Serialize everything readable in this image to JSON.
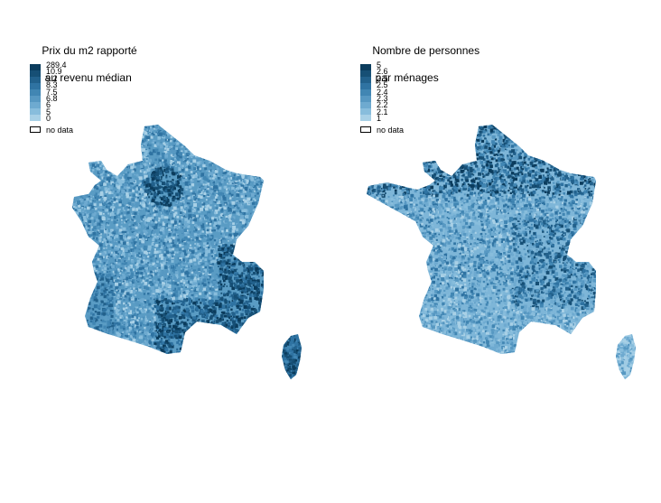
{
  "maps": [
    {
      "id": "left",
      "title_line1": "Prix du m2 rapporté",
      "title_line2": " au revenu médian",
      "legend_ticks": [
        "289.4",
        "10.9",
        "9.2",
        "8.3",
        "7.5",
        "6.8",
        "6",
        "5",
        "0"
      ],
      "swatch_colors": [
        "#0b3c5d",
        "#164f75",
        "#22618c",
        "#2f73a2",
        "#4186b3",
        "#5798c2",
        "#6eaad0",
        "#88bddc",
        "#a8d0e6"
      ],
      "no_data_label": "no data",
      "dominant_fill": "#5a9cc4"
    },
    {
      "id": "right",
      "title_line1": "Nombre de personnes",
      "title_line2": " par ménages",
      "legend_ticks": [
        "5",
        "2.6",
        "2.5",
        "2.5",
        "2.4",
        "2.3",
        "2.2",
        "2.1",
        "1"
      ],
      "swatch_colors": [
        "#0b3c5d",
        "#164f75",
        "#22618c",
        "#2f73a2",
        "#4186b3",
        "#5798c2",
        "#6eaad0",
        "#88bddc",
        "#a8d0e6"
      ],
      "no_data_label": "no data",
      "dominant_fill": "#7eb6d8"
    }
  ]
}
